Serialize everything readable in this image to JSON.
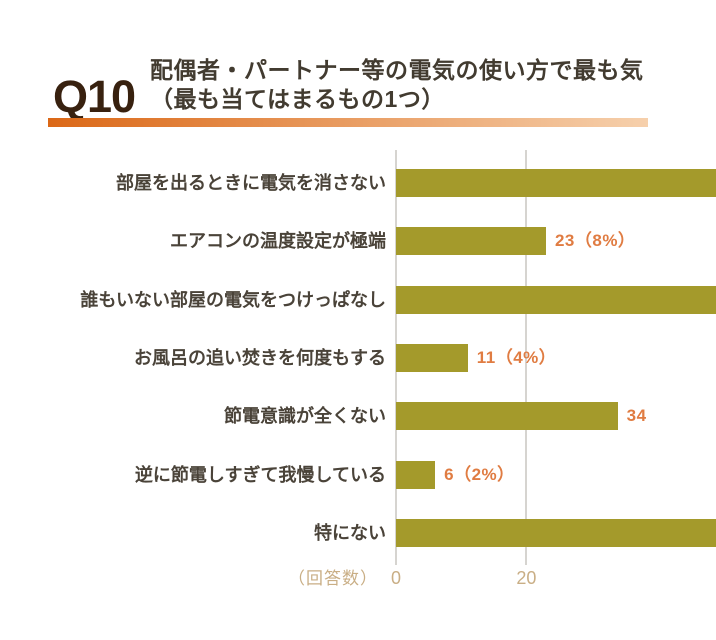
{
  "header": {
    "question_number": "Q10",
    "title_line1": "配偶者・パートナー等の電気の使い方で最も気",
    "title_line2": "（最も当てはまるもの1つ）"
  },
  "chart_data": {
    "type": "bar",
    "orientation": "horizontal",
    "xlabel": "（回答数）",
    "x_tick_values": [
      0,
      20
    ],
    "x_tick_labels": [
      "0",
      "20"
    ],
    "grid": "vertical",
    "legend": null,
    "categories": [
      "部屋を出るときに電気を消さない",
      "エアコンの温度設定が極端",
      "誰もいない部屋の電気をつけっぱなし",
      "お風呂の追い焚きを何度もする",
      "節電意識が全くない",
      "逆に節電しすぎて我慢している",
      "特にない"
    ],
    "values": [
      null,
      23,
      null,
      11,
      34,
      6,
      null
    ],
    "value_labels": [
      "",
      "23（8%）",
      "",
      "11（4%）",
      "34",
      "6（2%）",
      ""
    ],
    "bars_cut_off_at_right_edge": [
      true,
      false,
      true,
      false,
      false,
      false,
      true
    ],
    "colors": {
      "bar": "#a49a2b",
      "value_label": "#e07c42",
      "axis_text": "#c9ae85",
      "category_text": "#4a4339",
      "gridline": "#d6d4d0",
      "question_number": "#38210f",
      "title": "#423b30",
      "underline_gradient_start": "#db6817",
      "underline_gradient_end": "#f6d0ac"
    }
  }
}
